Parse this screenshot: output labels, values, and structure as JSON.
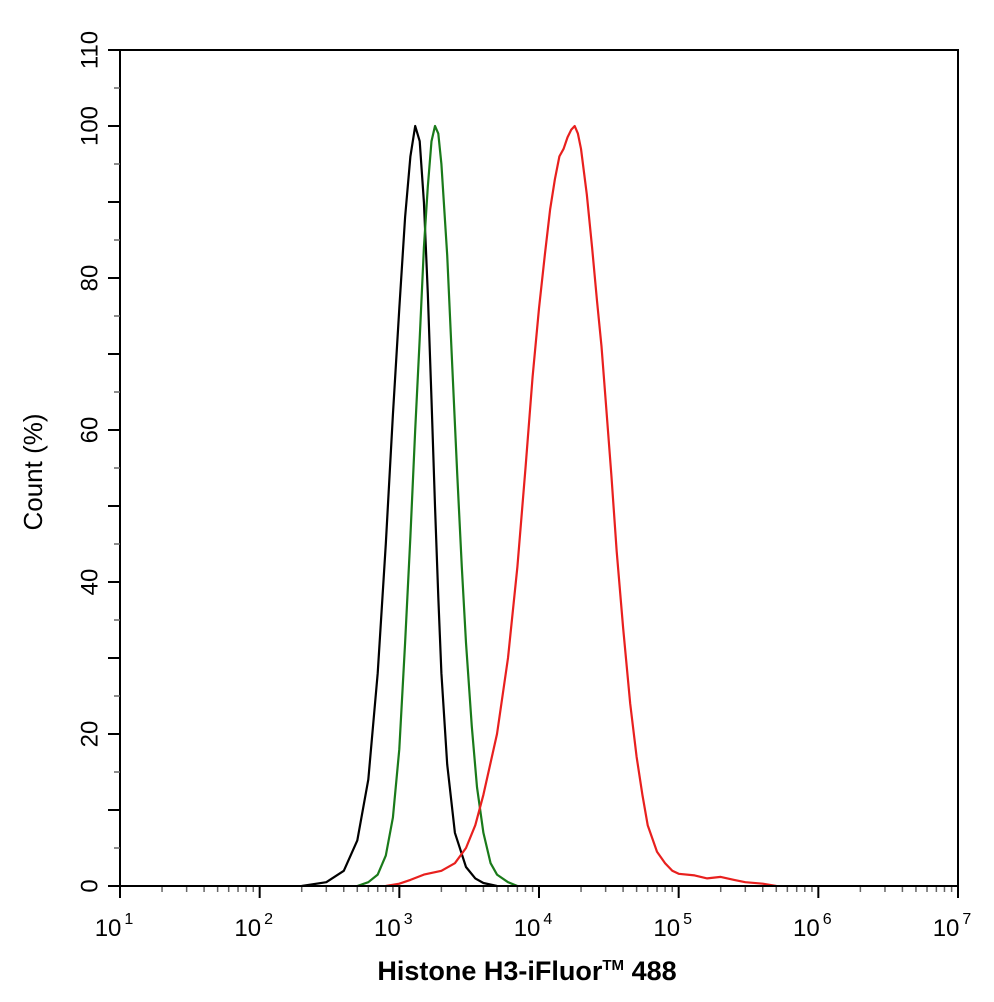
{
  "chart_data": {
    "type": "line",
    "xlabel_main": "Histone H3-iFluor",
    "xlabel_tm": "TM",
    "xlabel_tail": " 488",
    "ylabel": "Count  (%)",
    "x_scale": "log",
    "xlim": [
      10,
      10000000
    ],
    "ylim": [
      0,
      110
    ],
    "x_ticks": [
      {
        "base": "10",
        "exp": "1"
      },
      {
        "base": "10",
        "exp": "2"
      },
      {
        "base": "10",
        "exp": "3"
      },
      {
        "base": "10",
        "exp": "4"
      },
      {
        "base": "10",
        "exp": "5"
      },
      {
        "base": "10",
        "exp": "6"
      },
      {
        "base": "10",
        "exp": "7"
      }
    ],
    "y_ticks": [
      "0",
      "20",
      "40",
      "60",
      "80",
      "100",
      "110"
    ],
    "legend": "none",
    "grid": false,
    "series": [
      {
        "color": "#000000",
        "points": [
          [
            200,
            0
          ],
          [
            300,
            0.5
          ],
          [
            400,
            2
          ],
          [
            500,
            6
          ],
          [
            600,
            14
          ],
          [
            700,
            28
          ],
          [
            800,
            45
          ],
          [
            900,
            62
          ],
          [
            1000,
            76
          ],
          [
            1100,
            88
          ],
          [
            1200,
            96
          ],
          [
            1300,
            100
          ],
          [
            1400,
            98
          ],
          [
            1500,
            90
          ],
          [
            1600,
            78
          ],
          [
            1700,
            64
          ],
          [
            1800,
            50
          ],
          [
            1900,
            38
          ],
          [
            2000,
            28
          ],
          [
            2200,
            16
          ],
          [
            2500,
            7
          ],
          [
            3000,
            2.5
          ],
          [
            3500,
            1
          ],
          [
            4000,
            0.4
          ],
          [
            5000,
            0
          ]
        ]
      },
      {
        "color": "#1a7a1a",
        "points": [
          [
            500,
            0
          ],
          [
            600,
            0.5
          ],
          [
            700,
            1.5
          ],
          [
            800,
            4
          ],
          [
            900,
            9
          ],
          [
            1000,
            18
          ],
          [
            1100,
            32
          ],
          [
            1200,
            46
          ],
          [
            1300,
            60
          ],
          [
            1400,
            72
          ],
          [
            1500,
            84
          ],
          [
            1600,
            92
          ],
          [
            1700,
            98
          ],
          [
            1800,
            100
          ],
          [
            1900,
            99
          ],
          [
            2000,
            95
          ],
          [
            2200,
            83
          ],
          [
            2400,
            68
          ],
          [
            2600,
            54
          ],
          [
            2800,
            42
          ],
          [
            3000,
            32
          ],
          [
            3300,
            21
          ],
          [
            3600,
            13
          ],
          [
            4000,
            7
          ],
          [
            4500,
            3
          ],
          [
            5000,
            1.5
          ],
          [
            6000,
            0.5
          ],
          [
            7000,
            0
          ]
        ]
      },
      {
        "color": "#e8201e",
        "points": [
          [
            800,
            0
          ],
          [
            1000,
            0.3
          ],
          [
            1200,
            0.8
          ],
          [
            1500,
            1.5
          ],
          [
            2000,
            2
          ],
          [
            2500,
            3
          ],
          [
            3000,
            5
          ],
          [
            3500,
            8
          ],
          [
            4000,
            12
          ],
          [
            5000,
            20
          ],
          [
            6000,
            30
          ],
          [
            7000,
            42
          ],
          [
            8000,
            55
          ],
          [
            9000,
            67
          ],
          [
            10000,
            76
          ],
          [
            11000,
            83
          ],
          [
            12000,
            89
          ],
          [
            13000,
            93
          ],
          [
            14000,
            96
          ],
          [
            15000,
            97
          ],
          [
            16000,
            98.5
          ],
          [
            17000,
            99.5
          ],
          [
            18000,
            100
          ],
          [
            19000,
            99
          ],
          [
            20000,
            97
          ],
          [
            22000,
            91
          ],
          [
            24000,
            84
          ],
          [
            26000,
            77
          ],
          [
            28000,
            71
          ],
          [
            30000,
            64
          ],
          [
            33000,
            54
          ],
          [
            36000,
            44
          ],
          [
            40000,
            34
          ],
          [
            45000,
            24
          ],
          [
            50000,
            17
          ],
          [
            55000,
            12
          ],
          [
            60000,
            8
          ],
          [
            70000,
            4.5
          ],
          [
            80000,
            3
          ],
          [
            90000,
            2
          ],
          [
            100000,
            1.6
          ],
          [
            130000,
            1.4
          ],
          [
            160000,
            1
          ],
          [
            200000,
            1.2
          ],
          [
            250000,
            0.8
          ],
          [
            300000,
            0.5
          ],
          [
            400000,
            0.3
          ],
          [
            500000,
            0
          ]
        ]
      }
    ]
  }
}
